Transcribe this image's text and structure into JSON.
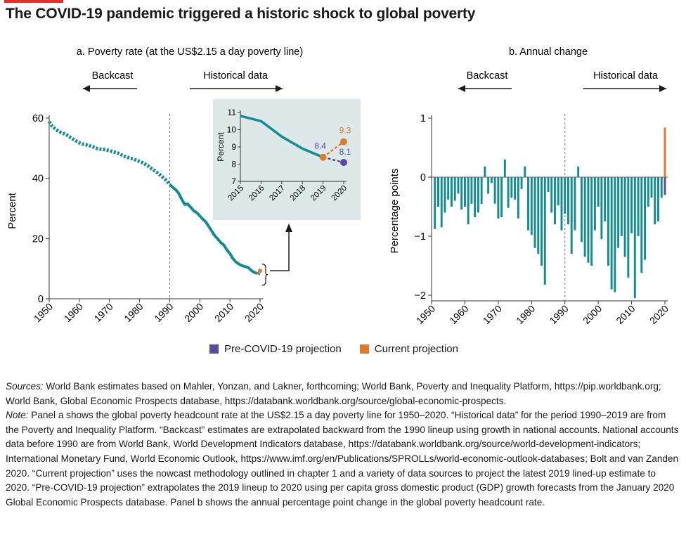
{
  "title": "The COVID-19 pandemic triggered a historic shock to global poverty",
  "colors": {
    "teal": "#128c93",
    "pre_covid": "#5b4a9e",
    "current": "#de7a2c",
    "inset_bg": "#dde8e8",
    "accent_red": "#e0302a"
  },
  "legend": {
    "pre_covid": "Pre-COVID-19 projection",
    "current": "Current projection"
  },
  "chart_data": [
    {
      "type": "line",
      "title": "a. Poverty rate  (at the US$2.15 a day poverty line)",
      "ylabel": "Percent",
      "xlim": [
        1950,
        2020
      ],
      "ylim": [
        0,
        60
      ],
      "xticks": [
        "1950",
        "1960",
        "1970",
        "1980",
        "1990",
        "2000",
        "2010",
        "2020"
      ],
      "yticks": [
        "0",
        "20",
        "40",
        "60"
      ],
      "annotations": {
        "backcast": "Backcast",
        "historical": "Historical data"
      },
      "series": [
        {
          "style": "dotted",
          "x": [
            1950,
            1951,
            1952,
            1953,
            1954,
            1955,
            1956,
            1957,
            1958,
            1959,
            1960,
            1961,
            1962,
            1963,
            1964,
            1965,
            1966,
            1967,
            1968,
            1969,
            1970,
            1971,
            1972,
            1973,
            1974,
            1975,
            1976,
            1977,
            1978,
            1979,
            1980,
            1981,
            1982,
            1983,
            1984,
            1985,
            1986,
            1987,
            1988,
            1989,
            1990
          ],
          "y": [
            58.8,
            57.3,
            56.4,
            55.7,
            55.2,
            54.8,
            54.3,
            53.6,
            53.0,
            52.4,
            51.8,
            51.4,
            51.2,
            51.0,
            50.6,
            50.3,
            49.9,
            49.7,
            49.6,
            49.4,
            49.2,
            48.9,
            48.6,
            48.3,
            47.8,
            47.3,
            47.0,
            46.7,
            46.4,
            46.0,
            45.6,
            45.2,
            44.6,
            44.0,
            43.2,
            42.5,
            41.8,
            41.0,
            40.1,
            39.2,
            38.0
          ]
        },
        {
          "style": "solid",
          "x": [
            1990,
            1991,
            1992,
            1993,
            1994,
            1995,
            1996,
            1997,
            1998,
            1999,
            2000,
            2001,
            2002,
            2003,
            2004,
            2005,
            2006,
            2007,
            2008,
            2009,
            2010,
            2011,
            2012,
            2013,
            2014,
            2015,
            2016,
            2017,
            2018,
            2019
          ],
          "y": [
            38.0,
            37.0,
            36.2,
            35.0,
            33.0,
            31.3,
            31.5,
            30.4,
            29.2,
            28.6,
            27.5,
            26.4,
            25.5,
            24.0,
            22.4,
            20.9,
            19.8,
            18.6,
            17.8,
            16.2,
            15.0,
            13.3,
            12.2,
            11.5,
            11.0,
            10.7,
            10.4,
            9.5,
            8.8,
            8.4
          ]
        },
        {
          "name": "Pre-COVID-19 projection",
          "x": [
            2019,
            2020
          ],
          "y": [
            8.4,
            8.1
          ]
        },
        {
          "name": "Current projection",
          "x": [
            2019,
            2020
          ],
          "y": [
            8.4,
            9.3
          ]
        }
      ]
    },
    {
      "type": "line",
      "subtitle": "inset",
      "ylabel": "Percent",
      "xlim": [
        2015,
        2020
      ],
      "ylim": [
        7,
        11
      ],
      "xticks": [
        "2015",
        "2016",
        "2017",
        "2018",
        "2019",
        "2020"
      ],
      "yticks": [
        "7",
        "8",
        "9",
        "10",
        "11"
      ],
      "series": [
        {
          "x": [
            2015,
            2016,
            2017,
            2018,
            2019
          ],
          "y": [
            10.8,
            10.5,
            9.6,
            8.9,
            8.4
          ]
        },
        {
          "name": "Pre-COVID-19 projection",
          "x": [
            2019,
            2020
          ],
          "y": [
            8.4,
            8.1
          ]
        },
        {
          "name": "Current projection",
          "x": [
            2019,
            2020
          ],
          "y": [
            8.4,
            9.3
          ]
        }
      ],
      "data_labels": {
        "y2019": "8.4",
        "current2020": "9.3",
        "pre2020": "8.1"
      }
    },
    {
      "type": "bar",
      "title": "b. Annual change",
      "ylabel": "Percentage points",
      "xlim": [
        1950,
        2020
      ],
      "ylim": [
        -2,
        1
      ],
      "xticks": [
        "1950",
        "1960",
        "1970",
        "1980",
        "1990",
        "2000",
        "2010",
        "2020"
      ],
      "yticks": [
        "−2",
        "−1",
        "0",
        "1"
      ],
      "annotations": {
        "backcast": "Backcast",
        "historical": "Historical data"
      },
      "categories": [
        1951,
        1952,
        1953,
        1954,
        1955,
        1956,
        1957,
        1958,
        1959,
        1960,
        1961,
        1962,
        1963,
        1964,
        1965,
        1966,
        1967,
        1968,
        1969,
        1970,
        1971,
        1972,
        1973,
        1974,
        1975,
        1976,
        1977,
        1978,
        1979,
        1980,
        1981,
        1982,
        1983,
        1984,
        1985,
        1986,
        1987,
        1988,
        1989,
        1990,
        1991,
        1992,
        1993,
        1994,
        1995,
        1996,
        1997,
        1998,
        1999,
        2000,
        2001,
        2002,
        2003,
        2004,
        2005,
        2006,
        2007,
        2008,
        2009,
        2010,
        2011,
        2012,
        2013,
        2014,
        2015,
        2016,
        2017,
        2018,
        2019
      ],
      "values": [
        -0.88,
        -0.5,
        -0.85,
        -0.6,
        -0.38,
        -0.5,
        -0.4,
        -0.28,
        -0.55,
        -0.5,
        -0.8,
        -0.45,
        -0.68,
        -0.6,
        -0.45,
        0.18,
        -0.28,
        -0.1,
        -0.45,
        -0.7,
        -0.68,
        0.3,
        -0.52,
        -0.35,
        -0.38,
        -0.7,
        -0.2,
        0.18,
        -0.9,
        -0.98,
        -1.2,
        -1.3,
        -1.5,
        -1.82,
        -0.25,
        -0.6,
        -0.8,
        -0.48,
        -0.9,
        -0.62,
        -0.8,
        -1.3,
        -0.9,
        0.18,
        -1.1,
        -1.35,
        -1.45,
        -1.5,
        -0.9,
        -0.5,
        -1.05,
        -0.75,
        -1.5,
        -1.9,
        -1.95,
        -1.2,
        -1.0,
        -1.35,
        -1.7,
        -0.95,
        -2.05,
        -1.0,
        -1.62,
        -1.4,
        -0.5,
        -0.35,
        -0.8,
        -0.75,
        -0.35
      ],
      "projections": [
        {
          "name": "Pre-COVID-19 projection",
          "x": 2020,
          "value": -0.3
        },
        {
          "name": "Current projection",
          "x": 2020,
          "value": 0.84
        }
      ]
    }
  ],
  "notes": {
    "sources_label": "Sources:",
    "sources_text": " World Bank estimates based on Mahler, Yonzan, and Lakner, forthcoming; World Bank, Poverty and Inequality Platform, https://pip.worldbank.org; World Bank, Global Economic Prospects database, https://databank.worldbank.org/source/global-economic-prospects.",
    "note_label": "Note:",
    "note_text": " Panel a shows the global poverty headcount rate at the US$2.15 a day poverty line for 1950–2020. “Historical data” for the period 1990–2019 are from the Poverty and Inequality Platform. “Backcast” estimates are extrapolated backward from the 1990 lineup using growth in national accounts. National accounts data before 1990 are from World Bank, World Development Indicators database, https://databank.worldbank.org/source/world-development-indicators; International Monetary Fund, World Economic Outlook, https://www.imf.org/en/Publications/SPROLLs/world-economic-outlook-databases; Bolt and van Zanden 2020. “Current projection” uses the nowcast methodology outlined in chapter 1 and a variety of data sources to project the latest 2019 lined-up estimate to 2020. “Pre-COVID-19 projection” extrapolates the 2019 lineup to 2020 using per capita gross domestic product (GDP) growth forecasts from the January 2020 Global Economic Prospects database. Panel b shows the annual percentage point change in the global poverty headcount rate."
  }
}
